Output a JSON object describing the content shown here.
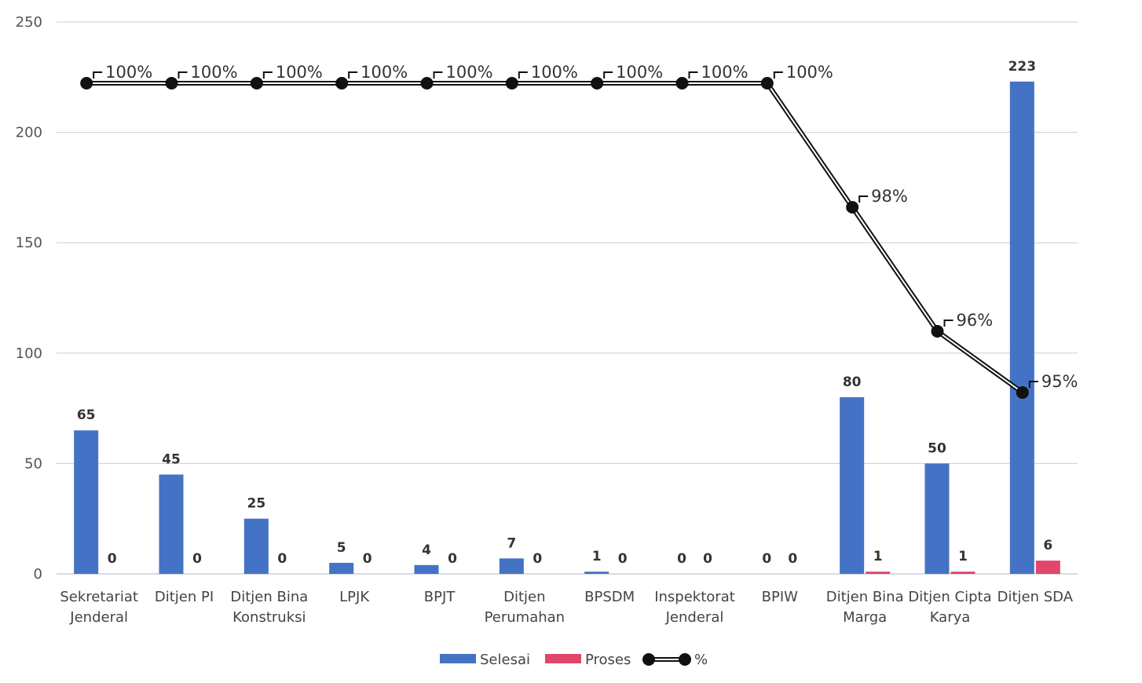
{
  "chart_data": {
    "type": "bar",
    "title": "",
    "xlabel": "",
    "ylabel": "",
    "ylim": [
      0,
      250
    ],
    "yticks": [
      0,
      50,
      100,
      150,
      200,
      250
    ],
    "grid": true,
    "legend_position": "bottom",
    "categories": [
      [
        "Sekretariat",
        "Jenderal"
      ],
      [
        "Ditjen PI"
      ],
      [
        "Ditjen Bina",
        "Konstruksi"
      ],
      [
        "LPJK"
      ],
      [
        "BPJT"
      ],
      [
        "Ditjen",
        "Perumahan"
      ],
      [
        "BPSDM"
      ],
      [
        "Inspektorat",
        "Jenderal"
      ],
      [
        "BPIW"
      ],
      [
        "Ditjen Bina",
        "Marga"
      ],
      [
        "Ditjen Cipta",
        "Karya"
      ],
      [
        "Ditjen SDA"
      ]
    ],
    "series": [
      {
        "name": "Selesai",
        "kind": "bar",
        "color": "#4472c4",
        "values": [
          65,
          45,
          25,
          5,
          4,
          7,
          1,
          0,
          0,
          80,
          50,
          223
        ],
        "labels": [
          "65",
          "45",
          "25",
          "5",
          "4",
          "7",
          "1",
          "0",
          "0",
          "80",
          "50",
          "223"
        ]
      },
      {
        "name": "Proses",
        "kind": "bar",
        "color": "#e0476b",
        "values": [
          0,
          0,
          0,
          0,
          0,
          0,
          0,
          0,
          0,
          1,
          1,
          6
        ],
        "labels": [
          "0",
          "0",
          "0",
          "0",
          "0",
          "0",
          "0",
          "0",
          "0",
          "1",
          "1",
          "6"
        ]
      },
      {
        "name": "%",
        "kind": "line",
        "color": "#111111",
        "values": [
          100,
          100,
          100,
          100,
          100,
          100,
          100,
          100,
          100,
          98,
          96,
          95
        ],
        "labels": [
          "100%",
          "100%",
          "100%",
          "100%",
          "100%",
          "100%",
          "100%",
          "100%",
          "100%",
          "98%",
          "96%",
          "95%"
        ]
      }
    ]
  }
}
